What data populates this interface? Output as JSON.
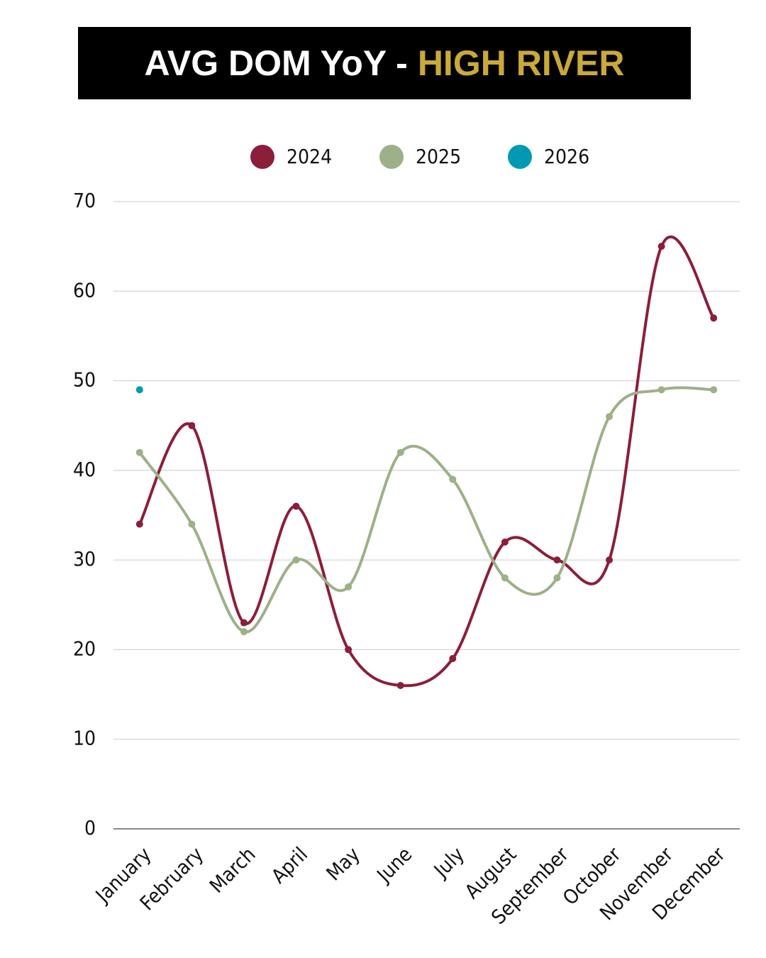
{
  "chart_data": {
    "type": "line",
    "title": [
      "AVG DOM YoY -",
      "HIGH RIVER"
    ],
    "categories": [
      "January",
      "February",
      "March",
      "April",
      "May",
      "June",
      "July",
      "August",
      "September",
      "October",
      "November",
      "December"
    ],
    "series": [
      {
        "name": "2024",
        "color": "#8b1e3a",
        "values": [
          34,
          45,
          23,
          36,
          20,
          16,
          19,
          32,
          30,
          30,
          65,
          57
        ]
      },
      {
        "name": "2025",
        "color": "#9db088",
        "values": [
          42,
          34,
          22,
          30,
          27,
          42,
          39,
          28,
          28,
          46,
          49,
          49
        ]
      },
      {
        "name": "2026",
        "color": "#0099b4",
        "values": [
          49,
          null,
          null,
          null,
          null,
          null,
          null,
          null,
          null,
          null,
          null,
          null
        ]
      }
    ],
    "ylim": [
      0,
      70
    ],
    "yticks": [
      0,
      10,
      20,
      30,
      40,
      50,
      60,
      70
    ],
    "grid": true,
    "legend": "top"
  }
}
